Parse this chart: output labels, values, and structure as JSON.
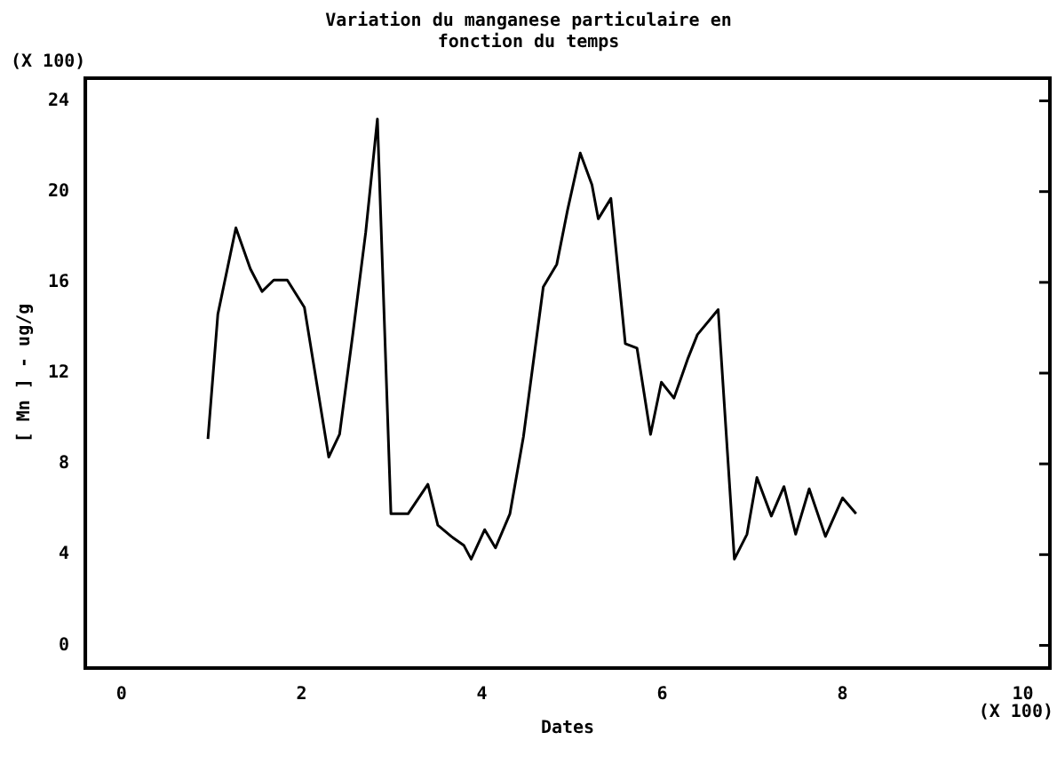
{
  "chart_data": {
    "type": "line",
    "title": "Variation du manganese particulaire en\nfonction du temps",
    "xlabel": "Dates",
    "ylabel": "[ Mn ] - ug/g",
    "annotations": [
      "(X 100)",
      "(X 100)"
    ],
    "x": [
      0.96,
      1.07,
      1.27,
      1.43,
      1.56,
      1.69,
      1.84,
      2.03,
      2.3,
      2.42,
      2.57,
      2.71,
      2.84,
      2.99,
      3.18,
      3.4,
      3.51,
      3.66,
      3.8,
      3.88,
      4.03,
      4.15,
      4.31,
      4.46,
      4.68,
      4.83,
      4.95,
      5.09,
      5.22,
      5.29,
      5.43,
      5.59,
      5.72,
      5.87,
      5.99,
      6.13,
      6.28,
      6.39,
      6.62,
      6.8,
      6.94,
      7.05,
      7.21,
      7.35,
      7.48,
      7.63,
      7.81,
      8.0,
      8.15
    ],
    "series": [
      {
        "color": "#000000",
        "values": [
          9.1,
          14.6,
          18.4,
          16.6,
          15.6,
          16.1,
          16.1,
          14.9,
          8.3,
          9.3,
          13.8,
          18.2,
          23.2,
          5.8,
          5.8,
          7.1,
          5.3,
          4.8,
          4.4,
          3.8,
          5.1,
          4.3,
          5.8,
          9.2,
          15.8,
          16.8,
          19.2,
          21.7,
          20.3,
          18.8,
          19.7,
          13.3,
          13.1,
          9.3,
          11.6,
          10.9,
          12.6,
          13.7,
          14.8,
          3.8,
          4.9,
          7.4,
          5.7,
          7.0,
          4.9,
          6.9,
          4.8,
          6.5,
          5.8
        ]
      }
    ],
    "xlim": [
      -0.4,
      10.3
    ],
    "xticks": [
      0,
      2,
      4,
      6,
      8,
      10
    ],
    "ylim": [
      -1,
      25
    ],
    "yticks": [
      0,
      4,
      8,
      12,
      16,
      20,
      24
    ],
    "grid": false,
    "legend": false,
    "marker": "none",
    "line_style": "solid"
  }
}
